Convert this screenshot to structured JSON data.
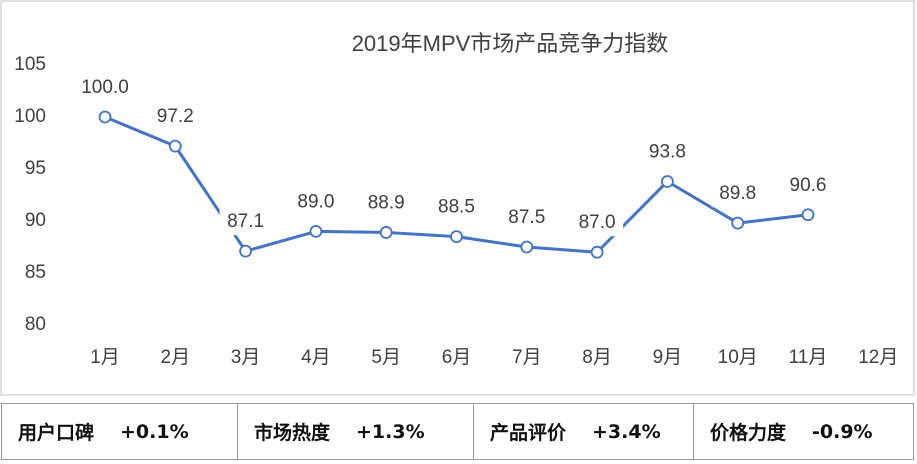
{
  "chart_data": {
    "type": "line",
    "title": "2019年MPV市场产品竞争力指数",
    "categories": [
      "1月",
      "2月",
      "3月",
      "4月",
      "5月",
      "6月",
      "7月",
      "8月",
      "9月",
      "10月",
      "11月",
      "12月"
    ],
    "series": [
      {
        "name": "产品竞争力指数",
        "color": "#4472c4",
        "values": [
          100.0,
          97.2,
          87.1,
          89.0,
          88.9,
          88.5,
          87.5,
          87.0,
          93.8,
          89.8,
          90.6,
          null
        ],
        "value_labels": [
          "100.0",
          "97.2",
          "87.1",
          "89.0",
          "88.9",
          "88.5",
          "87.5",
          "87.0",
          "93.8",
          "89.8",
          "90.6",
          null
        ]
      }
    ],
    "ylim": [
      80,
      105
    ],
    "yticks": [
      80,
      85,
      90,
      95,
      100,
      105
    ],
    "grid": false
  },
  "table": {
    "cells": [
      {
        "name": "用户口碑",
        "change": "+0.1%"
      },
      {
        "name": "市场热度",
        "change": "+1.3%"
      },
      {
        "name": "产品评价",
        "change": "+3.4%"
      },
      {
        "name": "价格力度",
        "change": "-0.9%"
      }
    ]
  }
}
